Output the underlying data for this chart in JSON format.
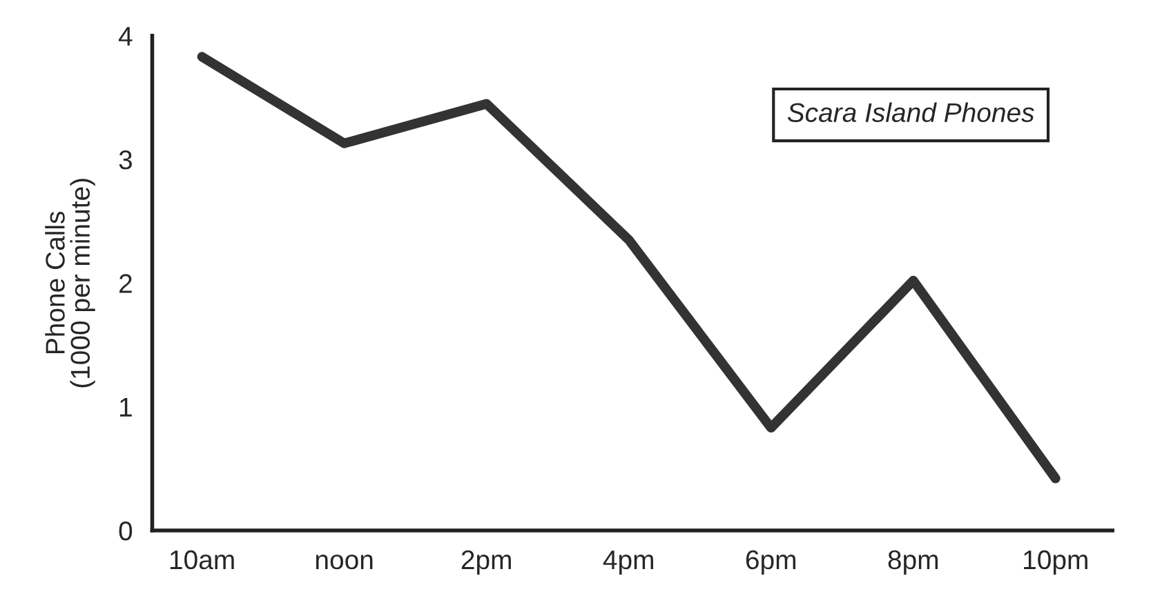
{
  "chart_data": {
    "type": "line",
    "title": "Scara Island Phones",
    "ylabel": "Phone Calls\n(1000 per minute)",
    "categories": [
      "10am",
      "noon",
      "2pm",
      "4pm",
      "6pm",
      "8pm",
      "10pm"
    ],
    "series": [
      {
        "color": "#333333",
        "values": [
          3.83,
          3.13,
          3.45,
          2.35,
          0.83,
          2.02,
          0.42
        ]
      }
    ],
    "ylim": [
      0,
      4
    ],
    "yticks": [
      0,
      1,
      2,
      3,
      4
    ],
    "grid": false,
    "legend": false,
    "marker": "none",
    "line_style": "solid"
  }
}
